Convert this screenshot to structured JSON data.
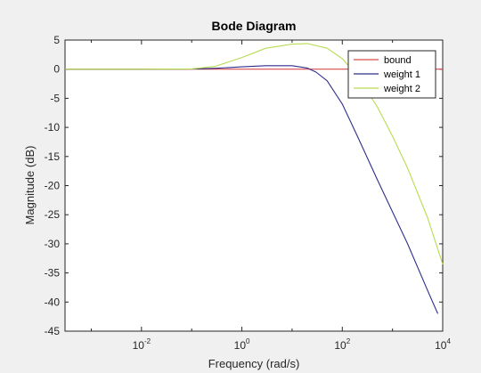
{
  "chart_data": {
    "type": "line",
    "title": "Bode Diagram",
    "xlabel": "Frequency  (rad/s)",
    "ylabel": "Magnitude (dB)",
    "x_scale": "log",
    "xlim": [
      0.0003,
      10000
    ],
    "ylim": [
      -45,
      5
    ],
    "x_ticks": [
      {
        "value": 0.01,
        "base": "10",
        "exp": "-2"
      },
      {
        "value": 1,
        "base": "10",
        "exp": "0"
      },
      {
        "value": 100,
        "base": "10",
        "exp": "2"
      },
      {
        "value": 10000,
        "base": "10",
        "exp": "4"
      }
    ],
    "y_ticks": [
      {
        "value": 5,
        "label": "5"
      },
      {
        "value": 0,
        "label": "0"
      },
      {
        "value": -5,
        "label": "-5"
      },
      {
        "value": -10,
        "label": "-10"
      },
      {
        "value": -15,
        "label": "-15"
      },
      {
        "value": -20,
        "label": "-20"
      },
      {
        "value": -25,
        "label": "-25"
      },
      {
        "value": -30,
        "label": "-30"
      },
      {
        "value": -35,
        "label": "-35"
      },
      {
        "value": -40,
        "label": "-40"
      },
      {
        "value": -45,
        "label": "-45"
      }
    ],
    "grid": false,
    "legend_position": "top-right",
    "series": [
      {
        "name": "bound",
        "color": "#d64d4d",
        "x": [
          0.0003,
          10000
        ],
        "y": [
          0,
          0
        ]
      },
      {
        "name": "weight 1",
        "color": "#2e2e8c",
        "x": [
          0.0003,
          0.01,
          0.1,
          0.3,
          1,
          3,
          10,
          20,
          30,
          50,
          100,
          200,
          500,
          1000,
          2000,
          5000,
          8000
        ],
        "y": [
          0,
          0,
          0.02,
          0.15,
          0.4,
          0.6,
          0.6,
          0.2,
          -0.5,
          -2,
          -6,
          -11.5,
          -19,
          -24.5,
          -30,
          -38,
          -42
        ]
      },
      {
        "name": "weight 2",
        "color": "#b8dc50",
        "x": [
          0.0003,
          0.01,
          0.1,
          0.3,
          1,
          3,
          10,
          20,
          50,
          100,
          200,
          500,
          1000,
          2000,
          5000,
          10000
        ],
        "y": [
          0,
          0,
          0.05,
          0.5,
          2,
          3.6,
          4.3,
          4.4,
          3.6,
          1.8,
          -1.2,
          -6.5,
          -11.5,
          -17,
          -25.5,
          -33.5
        ]
      }
    ]
  }
}
